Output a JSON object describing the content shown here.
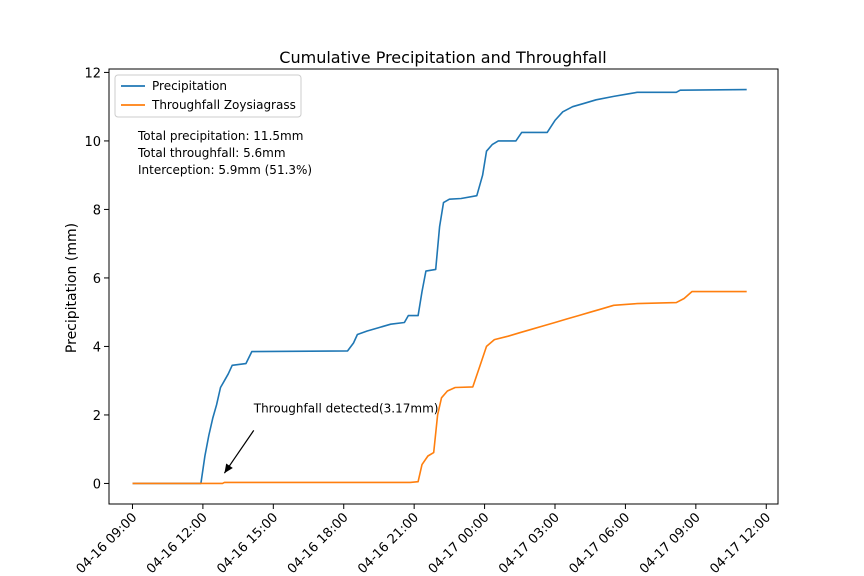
{
  "chart_data": {
    "type": "line",
    "title": "Cumulative Precipitation and Throughfall",
    "xlabel": "",
    "ylabel": "Precipitation (mm)",
    "x_type": "datetime",
    "xlim": [
      "04-16 08:00",
      "04-17 12:30"
    ],
    "ylim": [
      -0.6,
      12.1
    ],
    "x_ticks": [
      "04-16 09:00",
      "04-16 12:00",
      "04-16 15:00",
      "04-16 18:00",
      "04-16 21:00",
      "04-17 00:00",
      "04-17 03:00",
      "04-17 06:00",
      "04-17 09:00",
      "04-17 12:00"
    ],
    "y_ticks": [
      0,
      2,
      4,
      6,
      8,
      10,
      12
    ],
    "grid": false,
    "legend_position": "top-left",
    "series": [
      {
        "name": "Precipitation",
        "color": "#1f77b4",
        "points": [
          [
            "04-16 09:00",
            0
          ],
          [
            "04-16 11:55",
            0
          ],
          [
            "04-16 12:05",
            0.8
          ],
          [
            "04-16 12:15",
            1.4
          ],
          [
            "04-16 12:25",
            1.9
          ],
          [
            "04-16 12:35",
            2.3
          ],
          [
            "04-16 12:45",
            2.8
          ],
          [
            "04-16 12:55",
            3.0
          ],
          [
            "04-16 13:05",
            3.2
          ],
          [
            "04-16 13:15",
            3.45
          ],
          [
            "04-16 13:50",
            3.5
          ],
          [
            "04-16 14:05",
            3.85
          ],
          [
            "04-16 18:10",
            3.87
          ],
          [
            "04-16 18:25",
            4.1
          ],
          [
            "04-16 18:35",
            4.35
          ],
          [
            "04-16 19:00",
            4.45
          ],
          [
            "04-16 19:30",
            4.55
          ],
          [
            "04-16 20:00",
            4.65
          ],
          [
            "04-16 20:35",
            4.7
          ],
          [
            "04-16 20:45",
            4.9
          ],
          [
            "04-16 21:10",
            4.9
          ],
          [
            "04-16 21:20",
            5.6
          ],
          [
            "04-16 21:30",
            6.2
          ],
          [
            "04-16 21:55",
            6.25
          ],
          [
            "04-16 22:05",
            7.5
          ],
          [
            "04-16 22:15",
            8.2
          ],
          [
            "04-16 22:30",
            8.3
          ],
          [
            "04-16 23:00",
            8.32
          ],
          [
            "04-16 23:40",
            8.4
          ],
          [
            "04-16 23:55",
            9.0
          ],
          [
            "04-17 00:05",
            9.7
          ],
          [
            "04-17 00:20",
            9.9
          ],
          [
            "04-17 00:35",
            10.0
          ],
          [
            "04-17 01:20",
            10.0
          ],
          [
            "04-17 01:35",
            10.25
          ],
          [
            "04-17 02:40",
            10.25
          ],
          [
            "04-17 03:00",
            10.6
          ],
          [
            "04-17 03:20",
            10.85
          ],
          [
            "04-17 03:45",
            11.0
          ],
          [
            "04-17 04:15",
            11.1
          ],
          [
            "04-17 04:45",
            11.2
          ],
          [
            "04-17 05:30",
            11.3
          ],
          [
            "04-17 06:10",
            11.38
          ],
          [
            "04-17 06:30",
            11.42
          ],
          [
            "04-17 08:10",
            11.42
          ],
          [
            "04-17 08:20",
            11.48
          ],
          [
            "04-17 11:10",
            11.5
          ]
        ]
      },
      {
        "name": "Throughfall Zoysiagrass",
        "color": "#ff7f0e",
        "points": [
          [
            "04-16 09:00",
            0
          ],
          [
            "04-16 12:50",
            0
          ],
          [
            "04-16 12:55",
            0.03
          ],
          [
            "04-16 20:50",
            0.03
          ],
          [
            "04-16 21:10",
            0.05
          ],
          [
            "04-16 21:20",
            0.55
          ],
          [
            "04-16 21:35",
            0.8
          ],
          [
            "04-16 21:50",
            0.9
          ],
          [
            "04-16 22:00",
            2.0
          ],
          [
            "04-16 22:10",
            2.5
          ],
          [
            "04-16 22:25",
            2.7
          ],
          [
            "04-16 22:45",
            2.8
          ],
          [
            "04-16 23:30",
            2.82
          ],
          [
            "04-16 23:50",
            3.5
          ],
          [
            "04-17 00:05",
            4.0
          ],
          [
            "04-17 00:25",
            4.2
          ],
          [
            "04-17 01:00",
            4.3
          ],
          [
            "04-17 01:30",
            4.4
          ],
          [
            "04-17 02:00",
            4.5
          ],
          [
            "04-17 02:30",
            4.6
          ],
          [
            "04-17 03:00",
            4.7
          ],
          [
            "04-17 03:30",
            4.8
          ],
          [
            "04-17 04:00",
            4.9
          ],
          [
            "04-17 04:30",
            5.0
          ],
          [
            "04-17 05:00",
            5.1
          ],
          [
            "04-17 05:30",
            5.2
          ],
          [
            "04-17 06:30",
            5.25
          ],
          [
            "04-17 08:10",
            5.28
          ],
          [
            "04-17 08:30",
            5.4
          ],
          [
            "04-17 08:50",
            5.6
          ],
          [
            "04-17 11:10",
            5.6
          ]
        ]
      }
    ],
    "stats_text": [
      "Total precipitation: 11.5mm",
      "Total throughfall: 5.6mm",
      "Interception: 5.9mm (51.3%)"
    ],
    "annotation": {
      "text": "Throughfall detected(3.17mm)",
      "target": [
        "04-16 12:55",
        0.3
      ],
      "text_anchor_point": [
        "04-16 14:10",
        1.55
      ]
    }
  }
}
